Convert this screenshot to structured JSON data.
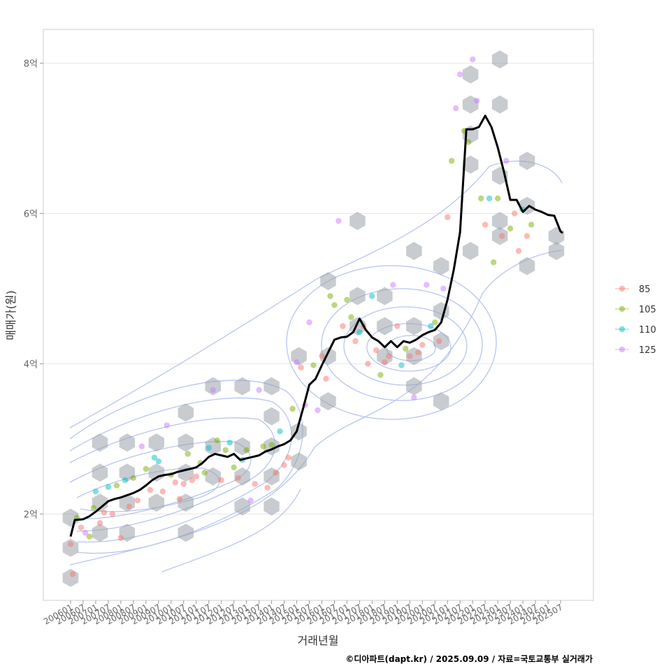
{
  "chart_data": {
    "type": "line",
    "xlabel": "거래년월",
    "ylabel": "매매가(원)",
    "caption": "©디아파트(dapt.kr) / 2025.09.09 / 자료=국토교통부 실거래가",
    "x_start": "2006-01",
    "x_end": "2025-08",
    "x_ticks": [
      "200601",
      "200607",
      "200701",
      "200707",
      "200801",
      "200807",
      "200901",
      "200907",
      "201001",
      "201007",
      "201101",
      "201107",
      "201201",
      "201207",
      "201301",
      "201307",
      "201401",
      "201407",
      "201501",
      "201507",
      "201601",
      "201607",
      "201701",
      "201707",
      "201801",
      "201807",
      "201901",
      "201907",
      "202001",
      "202007",
      "202101",
      "202107",
      "202201",
      "202207",
      "202301",
      "202307",
      "202401",
      "202407",
      "202501",
      "202507"
    ],
    "y_ticks": [
      {
        "value": 2,
        "label": "2억"
      },
      {
        "value": 4,
        "label": "4억"
      },
      {
        "value": 6,
        "label": "6억"
      },
      {
        "value": 8,
        "label": "8억"
      }
    ],
    "ylim": [
      0.85,
      8.45
    ],
    "grid": true,
    "legend": {
      "position": "right",
      "entries": [
        {
          "label": "85",
          "color": "#F8766D"
        },
        {
          "label": "105",
          "color": "#7CAE00"
        },
        {
          "label": "110",
          "color": "#00BFC4"
        },
        {
          "label": "125",
          "color": "#C77CFF"
        }
      ]
    },
    "series": [
      {
        "values": [
          [
            "2006-01",
            1.7
          ],
          [
            "2006-03",
            1.92
          ],
          [
            "2006-07",
            1.93
          ],
          [
            "2006-10",
            1.97
          ],
          [
            "2007-01",
            2.03
          ],
          [
            "2007-04",
            2.1
          ],
          [
            "2007-07",
            2.17
          ],
          [
            "2007-10",
            2.2
          ],
          [
            "2008-01",
            2.22
          ],
          [
            "2008-04",
            2.25
          ],
          [
            "2008-07",
            2.28
          ],
          [
            "2008-10",
            2.32
          ],
          [
            "2009-01",
            2.38
          ],
          [
            "2009-04",
            2.45
          ],
          [
            "2009-07",
            2.5
          ],
          [
            "2009-10",
            2.52
          ],
          [
            "2010-01",
            2.53
          ],
          [
            "2010-04",
            2.56
          ],
          [
            "2010-07",
            2.58
          ],
          [
            "2010-10",
            2.6
          ],
          [
            "2011-01",
            2.62
          ],
          [
            "2011-04",
            2.68
          ],
          [
            "2011-07",
            2.76
          ],
          [
            "2011-10",
            2.8
          ],
          [
            "2012-01",
            2.78
          ],
          [
            "2012-04",
            2.76
          ],
          [
            "2012-07",
            2.8
          ],
          [
            "2012-10",
            2.72
          ],
          [
            "2013-01",
            2.74
          ],
          [
            "2013-04",
            2.76
          ],
          [
            "2013-07",
            2.78
          ],
          [
            "2013-10",
            2.83
          ],
          [
            "2014-01",
            2.86
          ],
          [
            "2014-04",
            2.9
          ],
          [
            "2014-07",
            2.93
          ],
          [
            "2014-10",
            2.98
          ],
          [
            "2015-01",
            3.1
          ],
          [
            "2015-04",
            3.4
          ],
          [
            "2015-07",
            3.72
          ],
          [
            "2015-10",
            3.8
          ],
          [
            "2016-01",
            3.98
          ],
          [
            "2016-04",
            4.15
          ],
          [
            "2016-07",
            4.32
          ],
          [
            "2016-10",
            4.35
          ],
          [
            "2017-01",
            4.36
          ],
          [
            "2017-04",
            4.42
          ],
          [
            "2017-07",
            4.6
          ],
          [
            "2017-10",
            4.45
          ],
          [
            "2018-01",
            4.35
          ],
          [
            "2018-04",
            4.3
          ],
          [
            "2018-07",
            4.22
          ],
          [
            "2018-10",
            4.3
          ],
          [
            "2019-01",
            4.22
          ],
          [
            "2019-04",
            4.3
          ],
          [
            "2019-07",
            4.28
          ],
          [
            "2019-10",
            4.32
          ],
          [
            "2020-01",
            4.38
          ],
          [
            "2020-04",
            4.42
          ],
          [
            "2020-07",
            4.45
          ],
          [
            "2020-10",
            4.55
          ],
          [
            "2021-01",
            4.85
          ],
          [
            "2021-04",
            5.25
          ],
          [
            "2021-07",
            5.75
          ],
          [
            "2021-10",
            7.12
          ],
          [
            "2022-01",
            7.12
          ],
          [
            "2022-04",
            7.15
          ],
          [
            "2022-07",
            7.3
          ],
          [
            "2022-10",
            7.15
          ],
          [
            "2023-01",
            6.88
          ],
          [
            "2023-04",
            6.55
          ],
          [
            "2023-07",
            6.18
          ],
          [
            "2023-10",
            6.18
          ],
          [
            "2024-01",
            6.02
          ],
          [
            "2024-04",
            6.1
          ],
          [
            "2024-07",
            6.05
          ],
          [
            "2024-10",
            6.02
          ],
          [
            "2025-01",
            5.98
          ],
          [
            "2025-04",
            5.97
          ],
          [
            "2025-07",
            5.76
          ],
          [
            "2025-08",
            5.74
          ]
        ]
      }
    ],
    "scatter_points": [
      [
        "2006-01",
        1.6,
        "85"
      ],
      [
        "2006-02",
        1.2,
        "85"
      ],
      [
        "2006-04",
        1.95,
        "105"
      ],
      [
        "2006-06",
        1.82,
        "85"
      ],
      [
        "2006-08",
        1.75,
        "125"
      ],
      [
        "2006-10",
        1.7,
        "105"
      ],
      [
        "2006-12",
        2.08,
        "105"
      ],
      [
        "2007-01",
        2.3,
        "110"
      ],
      [
        "2007-03",
        1.88,
        "85"
      ],
      [
        "2007-05",
        2.02,
        "85"
      ],
      [
        "2007-07",
        2.36,
        "110"
      ],
      [
        "2007-09",
        2.0,
        "85"
      ],
      [
        "2007-11",
        2.38,
        "105"
      ],
      [
        "2008-01",
        1.68,
        "85"
      ],
      [
        "2008-03",
        2.45,
        "110"
      ],
      [
        "2008-05",
        2.1,
        "85"
      ],
      [
        "2008-07",
        2.48,
        "105"
      ],
      [
        "2008-09",
        2.18,
        "85"
      ],
      [
        "2008-11",
        2.9,
        "125"
      ],
      [
        "2009-01",
        2.6,
        "105"
      ],
      [
        "2009-03",
        2.32,
        "85"
      ],
      [
        "2009-05",
        2.75,
        "110"
      ],
      [
        "2009-07",
        2.7,
        "110"
      ],
      [
        "2009-09",
        2.3,
        "85"
      ],
      [
        "2009-11",
        3.18,
        "125"
      ],
      [
        "2010-01",
        2.52,
        "105"
      ],
      [
        "2010-03",
        2.42,
        "85"
      ],
      [
        "2010-05",
        2.2,
        "85"
      ],
      [
        "2010-07",
        2.4,
        "85"
      ],
      [
        "2010-09",
        2.8,
        "105"
      ],
      [
        "2010-11",
        2.45,
        "85"
      ],
      [
        "2011-01",
        2.5,
        "85"
      ],
      [
        "2011-03",
        2.68,
        "105"
      ],
      [
        "2011-05",
        2.55,
        "105"
      ],
      [
        "2011-07",
        2.88,
        "110"
      ],
      [
        "2011-09",
        3.65,
        "125"
      ],
      [
        "2011-11",
        2.98,
        "105"
      ],
      [
        "2012-01",
        2.45,
        "85"
      ],
      [
        "2012-03",
        2.85,
        "105"
      ],
      [
        "2012-05",
        2.95,
        "110"
      ],
      [
        "2012-07",
        2.62,
        "105"
      ],
      [
        "2012-09",
        2.48,
        "85"
      ],
      [
        "2012-11",
        2.72,
        "110"
      ],
      [
        "2013-01",
        2.85,
        "105"
      ],
      [
        "2013-03",
        2.18,
        "125"
      ],
      [
        "2013-05",
        2.4,
        "85"
      ],
      [
        "2013-07",
        3.65,
        "125"
      ],
      [
        "2013-09",
        2.9,
        "105"
      ],
      [
        "2013-11",
        2.35,
        "85"
      ],
      [
        "2014-01",
        2.92,
        "105"
      ],
      [
        "2014-03",
        2.55,
        "85"
      ],
      [
        "2014-05",
        3.1,
        "110"
      ],
      [
        "2014-07",
        2.65,
        "85"
      ],
      [
        "2014-09",
        2.75,
        "85"
      ],
      [
        "2014-11",
        3.4,
        "105"
      ],
      [
        "2015-01",
        4.02,
        "125"
      ],
      [
        "2015-03",
        3.95,
        "85"
      ],
      [
        "2015-05",
        3.45,
        "125"
      ],
      [
        "2015-07",
        4.55,
        "125"
      ],
      [
        "2015-09",
        3.98,
        "105"
      ],
      [
        "2015-11",
        3.38,
        "125"
      ],
      [
        "2016-01",
        4.1,
        "85"
      ],
      [
        "2016-03",
        3.8,
        "85"
      ],
      [
        "2016-05",
        4.9,
        "105"
      ],
      [
        "2016-07",
        4.78,
        "105"
      ],
      [
        "2016-09",
        5.9,
        "125"
      ],
      [
        "2016-11",
        4.5,
        "85"
      ],
      [
        "2017-01",
        4.85,
        "105"
      ],
      [
        "2017-03",
        4.62,
        "105"
      ],
      [
        "2017-05",
        4.3,
        "85"
      ],
      [
        "2017-07",
        4.42,
        "110"
      ],
      [
        "2017-09",
        4.5,
        "85"
      ],
      [
        "2017-11",
        4.0,
        "85"
      ],
      [
        "2018-01",
        4.9,
        "110"
      ],
      [
        "2018-03",
        4.18,
        "85"
      ],
      [
        "2018-05",
        3.85,
        "105"
      ],
      [
        "2018-07",
        4.02,
        "85"
      ],
      [
        "2018-09",
        4.1,
        "85"
      ],
      [
        "2018-11",
        5.05,
        "125"
      ],
      [
        "2019-01",
        4.5,
        "85"
      ],
      [
        "2019-03",
        3.98,
        "110"
      ],
      [
        "2019-05",
        4.2,
        "105"
      ],
      [
        "2019-07",
        4.1,
        "85"
      ],
      [
        "2019-09",
        3.55,
        "125"
      ],
      [
        "2019-11",
        4.15,
        "85"
      ],
      [
        "2020-01",
        4.25,
        "85"
      ],
      [
        "2020-03",
        5.05,
        "125"
      ],
      [
        "2020-05",
        4.5,
        "110"
      ],
      [
        "2020-07",
        4.55,
        "105"
      ],
      [
        "2020-09",
        4.3,
        "85"
      ],
      [
        "2020-11",
        5.0,
        "125"
      ],
      [
        "2021-01",
        5.95,
        "85"
      ],
      [
        "2021-03",
        6.7,
        "105"
      ],
      [
        "2021-05",
        7.4,
        "125"
      ],
      [
        "2021-07",
        7.85,
        "125"
      ],
      [
        "2021-09",
        7.1,
        "105"
      ],
      [
        "2021-11",
        6.95,
        "105"
      ],
      [
        "2022-01",
        8.05,
        "125"
      ],
      [
        "2022-03",
        7.5,
        "125"
      ],
      [
        "2022-05",
        6.2,
        "105"
      ],
      [
        "2022-07",
        5.85,
        "85"
      ],
      [
        "2022-09",
        6.2,
        "110"
      ],
      [
        "2022-11",
        5.35,
        "105"
      ],
      [
        "2023-01",
        6.2,
        "105"
      ],
      [
        "2023-03",
        5.7,
        "85"
      ],
      [
        "2023-05",
        6.7,
        "125"
      ],
      [
        "2023-07",
        5.8,
        "105"
      ],
      [
        "2023-09",
        6.0,
        "85"
      ],
      [
        "2023-11",
        5.5,
        "85"
      ],
      [
        "2024-01",
        6.05,
        "110"
      ],
      [
        "2024-03",
        5.7,
        "85"
      ],
      [
        "2024-05",
        5.85,
        "105"
      ]
    ],
    "hexbin_cells": [
      [
        "2006-01",
        1.95
      ],
      [
        "2006-01",
        1.55
      ],
      [
        "2006-01",
        1.15
      ],
      [
        "2007-03",
        2.95
      ],
      [
        "2007-03",
        2.55
      ],
      [
        "2007-03",
        2.15
      ],
      [
        "2007-03",
        1.75
      ],
      [
        "2008-04",
        2.95
      ],
      [
        "2008-04",
        2.55
      ],
      [
        "2008-04",
        2.15
      ],
      [
        "2008-04",
        1.75
      ],
      [
        "2009-06",
        2.95
      ],
      [
        "2009-06",
        2.55
      ],
      [
        "2009-06",
        2.15
      ],
      [
        "2010-08",
        3.35
      ],
      [
        "2010-08",
        2.95
      ],
      [
        "2010-08",
        2.55
      ],
      [
        "2010-08",
        2.15
      ],
      [
        "2010-08",
        1.75
      ],
      [
        "2011-09",
        3.7
      ],
      [
        "2011-09",
        2.9
      ],
      [
        "2011-09",
        2.5
      ],
      [
        "2012-11",
        3.7
      ],
      [
        "2012-11",
        2.9
      ],
      [
        "2012-11",
        2.5
      ],
      [
        "2012-11",
        2.1
      ],
      [
        "2014-01",
        3.7
      ],
      [
        "2014-01",
        3.3
      ],
      [
        "2014-01",
        2.9
      ],
      [
        "2014-01",
        2.5
      ],
      [
        "2014-01",
        2.1
      ],
      [
        "2015-02",
        4.1
      ],
      [
        "2015-02",
        3.1
      ],
      [
        "2015-02",
        2.7
      ],
      [
        "2016-04",
        5.1
      ],
      [
        "2016-04",
        4.1
      ],
      [
        "2016-04",
        3.5
      ],
      [
        "2017-06",
        5.9
      ],
      [
        "2017-06",
        4.9
      ],
      [
        "2017-06",
        4.5
      ],
      [
        "2018-07",
        4.9
      ],
      [
        "2018-07",
        4.5
      ],
      [
        "2018-07",
        4.1
      ],
      [
        "2019-09",
        5.5
      ],
      [
        "2019-09",
        4.5
      ],
      [
        "2019-09",
        4.1
      ],
      [
        "2019-09",
        3.7
      ],
      [
        "2020-10",
        5.3
      ],
      [
        "2020-10",
        4.7
      ],
      [
        "2020-10",
        4.3
      ],
      [
        "2020-10",
        3.5
      ],
      [
        "2021-12",
        7.85
      ],
      [
        "2021-12",
        7.45
      ],
      [
        "2021-12",
        7.05
      ],
      [
        "2021-12",
        6.65
      ],
      [
        "2021-12",
        5.5
      ],
      [
        "2023-02",
        8.05
      ],
      [
        "2023-02",
        7.45
      ],
      [
        "2023-02",
        6.5
      ],
      [
        "2023-02",
        5.9
      ],
      [
        "2023-02",
        5.7
      ],
      [
        "2024-03",
        6.7
      ],
      [
        "2024-03",
        6.1
      ],
      [
        "2024-03",
        5.3
      ],
      [
        "2025-05",
        5.7
      ],
      [
        "2025-05",
        5.5
      ]
    ]
  }
}
